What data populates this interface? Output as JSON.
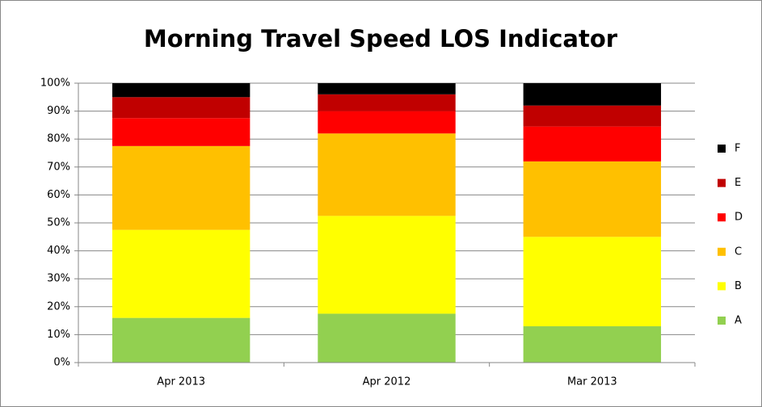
{
  "chart_data": {
    "type": "stacked_bar",
    "title": "Morning Travel Speed LOS Indicator",
    "categories": [
      "Apr 2013",
      "Apr 2012",
      "Mar 2013"
    ],
    "series": [
      {
        "name": "A",
        "color": "#92d050",
        "values": [
          16,
          17.5,
          13
        ]
      },
      {
        "name": "B",
        "color": "#ffff00",
        "values": [
          31.5,
          35,
          32
        ]
      },
      {
        "name": "C",
        "color": "#ffc000",
        "values": [
          30,
          29.5,
          27
        ]
      },
      {
        "name": "D",
        "color": "#ff0000",
        "values": [
          10,
          8,
          12.5
        ]
      },
      {
        "name": "E",
        "color": "#c00000",
        "values": [
          7.5,
          6,
          7.5
        ]
      },
      {
        "name": "F",
        "color": "#000000",
        "values": [
          5,
          4,
          8
        ]
      }
    ],
    "ylim": [
      0,
      100
    ],
    "yticks": [
      {
        "value": 0,
        "label": "0%"
      },
      {
        "value": 10,
        "label": "10%"
      },
      {
        "value": 20,
        "label": "20%"
      },
      {
        "value": 30,
        "label": "30%"
      },
      {
        "value": 40,
        "label": "40%"
      },
      {
        "value": 50,
        "label": "50%"
      },
      {
        "value": 60,
        "label": "60%"
      },
      {
        "value": 70,
        "label": "70%"
      },
      {
        "value": 80,
        "label": "80%"
      },
      {
        "value": 90,
        "label": "90%"
      },
      {
        "value": 100,
        "label": "100%"
      }
    ],
    "grid": true,
    "legend": "right"
  }
}
